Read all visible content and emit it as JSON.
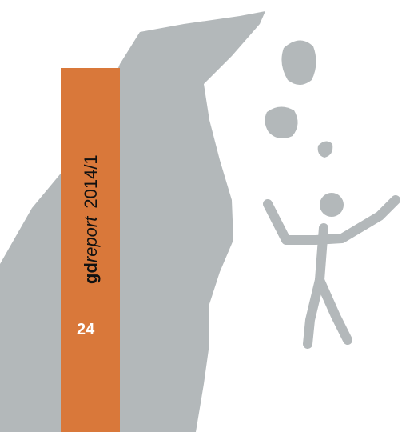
{
  "header": {
    "brand_bold": "gd",
    "brand_italic": "report",
    "issue": "2014/1"
  },
  "page_number": "24"
}
